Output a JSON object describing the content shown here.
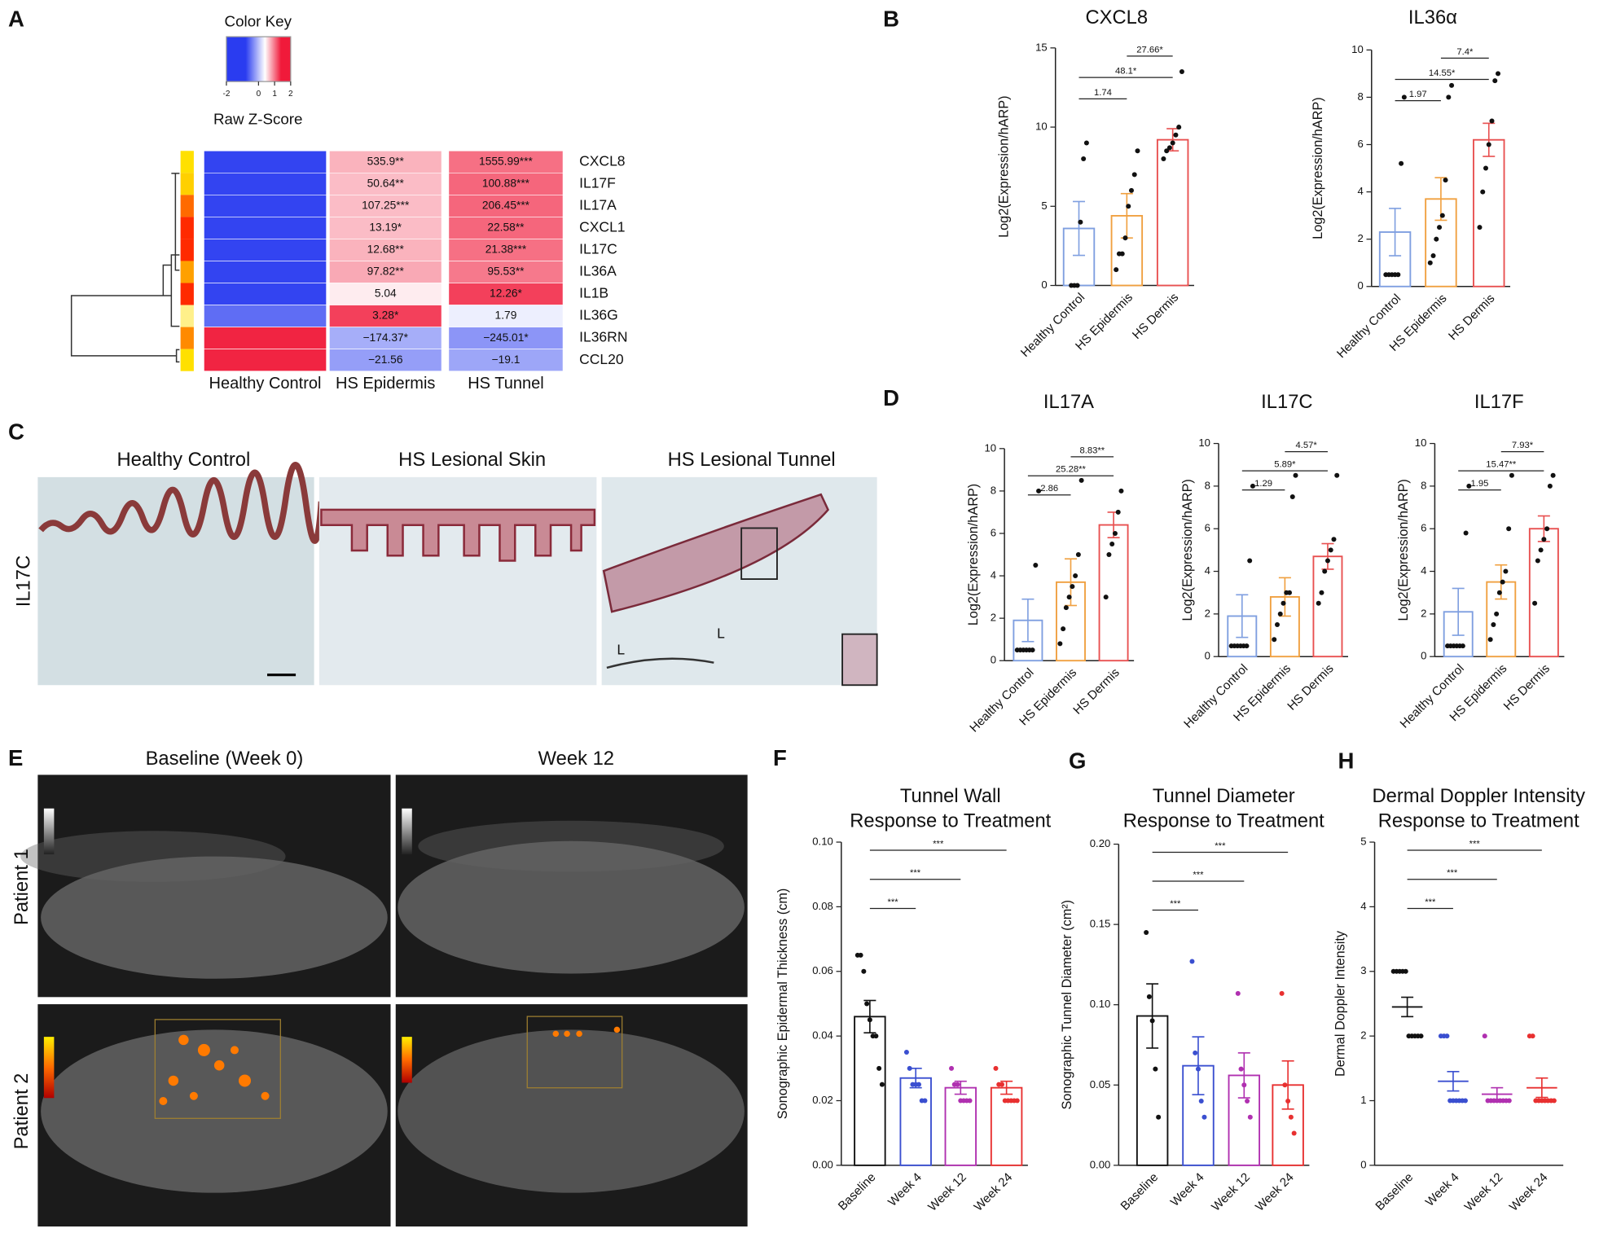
{
  "panels": {
    "labels": [
      "A",
      "B",
      "C",
      "D",
      "E",
      "F",
      "G",
      "H"
    ],
    "histology": {
      "titles": [
        "Healthy Control",
        "HS Lesional Skin",
        "HS Lesional Tunnel"
      ],
      "row_label": "IL17C",
      "lumen_labels": [
        "L",
        "L"
      ]
    },
    "ultrasound": {
      "titles": [
        "Baseline (Week 0)",
        "Week 12"
      ],
      "row_labels": [
        "Patient 1",
        "Patient 2"
      ]
    }
  },
  "chart_data": [
    {
      "type": "heatmap",
      "key_title": "Color Key",
      "key_label": "Raw Z-Score",
      "key_ticks": [
        -2,
        0,
        1,
        2
      ],
      "rows": [
        "CXCL8",
        "IL17F",
        "IL17A",
        "CXCL1",
        "IL17C",
        "IL36A",
        "IL1B",
        "IL36G",
        "IL36RN",
        "CCL20"
      ],
      "row_colors": [
        "#ffe000",
        "#ffd000",
        "#ff6a00",
        "#ff2a00",
        "#ff2a00",
        "#ffa000",
        "#ff2a00",
        "#fff08a",
        "#ff8a00",
        "#ffe000"
      ],
      "columns": [
        "Healthy Control",
        "HS Epidermis",
        "HS Tunnel"
      ],
      "values": [
        [
          -1.15,
          -1.15,
          -1.15,
          -1.15,
          -1.15,
          -1.15,
          -1.15,
          -0.9,
          1.15,
          1.15
        ],
        [
          0.4,
          0.35,
          0.35,
          0.35,
          0.4,
          0.45,
          0.1,
          1.0,
          -0.5,
          -0.6
        ],
        [
          0.75,
          0.8,
          0.8,
          0.8,
          0.75,
          0.7,
          1.0,
          -0.1,
          -0.65,
          -0.55
        ]
      ],
      "cell_labels": [
        [
          null,
          null,
          null,
          null,
          null,
          null,
          null,
          null,
          null,
          null
        ],
        [
          "535.9**",
          "50.64**",
          "107.25***",
          "13.19*",
          "12.68**",
          "97.82**",
          "5.04",
          "3.28*",
          "−174.37*",
          "−21.56"
        ],
        [
          "1555.99***",
          "100.88***",
          "206.45***",
          "22.58**",
          "21.38***",
          "95.53**",
          "12.26*",
          "1.79",
          "−245.01*",
          "−19.1"
        ]
      ]
    },
    {
      "type": "bar",
      "title": "CXCL8",
      "y_label": "Log2(Expression/hARP)",
      "categories": [
        "Healthy Control",
        "HS Epidermis",
        "HS Dermis"
      ],
      "colors": [
        "#7f9fe0",
        "#f0a040",
        "#e85050"
      ],
      "point_color": "#111",
      "values": [
        3.6,
        4.4,
        9.2
      ],
      "errors": [
        1.7,
        1.4,
        0.7
      ],
      "points": [
        [
          0,
          0,
          0,
          4,
          8,
          9
        ],
        [
          1,
          2,
          2,
          3,
          5,
          6,
          7,
          8.5
        ],
        [
          8,
          8.5,
          8.7,
          9,
          9.5,
          10,
          13.5
        ]
      ],
      "comparisons": [
        {
          "groups": [
            "Healthy Control",
            "HS Epidermis"
          ],
          "label": "1.74"
        },
        {
          "groups": [
            "Healthy Control",
            "HS Dermis"
          ],
          "label": "48.1*"
        },
        {
          "groups": [
            "HS Epidermis",
            "HS Dermis"
          ],
          "label": "27.66*"
        }
      ],
      "ylim": [
        0,
        15
      ],
      "yticks": [
        0,
        5,
        10,
        15
      ]
    },
    {
      "type": "bar",
      "title": "IL36α",
      "y_label": "Log2(Expression/hARP)",
      "categories": [
        "Healthy Control",
        "HS Epidermis",
        "HS Dermis"
      ],
      "colors": [
        "#7f9fe0",
        "#f0a040",
        "#e85050"
      ],
      "point_color": "#111",
      "values": [
        2.3,
        3.7,
        6.2
      ],
      "errors": [
        1.0,
        0.9,
        0.7
      ],
      "points": [
        [
          0.5,
          0.5,
          0.5,
          0.5,
          0.5,
          5.2,
          8
        ],
        [
          1,
          1.3,
          2,
          2.5,
          3,
          4.5,
          8,
          8.5
        ],
        [
          2.5,
          4,
          5,
          6,
          7,
          8.7,
          9
        ]
      ],
      "comparisons": [
        {
          "groups": [
            "Healthy Control",
            "HS Epidermis"
          ],
          "label": "1.97"
        },
        {
          "groups": [
            "Healthy Control",
            "HS Dermis"
          ],
          "label": "14.55*"
        },
        {
          "groups": [
            "HS Epidermis",
            "HS Dermis"
          ],
          "label": "7.4*"
        }
      ],
      "ylim": [
        0,
        10
      ],
      "yticks": [
        0,
        2,
        4,
        6,
        8,
        10
      ]
    },
    {
      "type": "bar",
      "title": "IL17A",
      "y_label": "Log2(Expression/hARP)",
      "categories": [
        "Healthy Control",
        "HS Epidermis",
        "HS Dermis"
      ],
      "colors": [
        "#7f9fe0",
        "#f0a040",
        "#e85050"
      ],
      "point_color": "#111",
      "values": [
        1.9,
        3.7,
        6.4
      ],
      "errors": [
        1.0,
        1.1,
        0.6
      ],
      "points": [
        [
          0.5,
          0.5,
          0.5,
          0.5,
          0.5,
          0.5,
          4.5,
          8
        ],
        [
          0.8,
          1.5,
          2.5,
          3,
          3.5,
          4,
          5,
          8.5
        ],
        [
          3,
          5,
          5.5,
          6,
          7,
          8
        ]
      ],
      "comparisons": [
        {
          "groups": [
            "Healthy Control",
            "HS Epidermis"
          ],
          "label": "2.86"
        },
        {
          "groups": [
            "Healthy Control",
            "HS Dermis"
          ],
          "label": "25.28**"
        },
        {
          "groups": [
            "HS Epidermis",
            "HS Dermis"
          ],
          "label": "8.83**"
        }
      ],
      "ylim": [
        0,
        10
      ],
      "yticks": [
        0,
        2,
        4,
        6,
        8,
        10
      ]
    },
    {
      "type": "bar",
      "title": "IL17C",
      "y_label": "Log2(Expression/hARP)",
      "categories": [
        "Healthy Control",
        "HS Epidermis",
        "HS Dermis"
      ],
      "colors": [
        "#7f9fe0",
        "#f0a040",
        "#e85050"
      ],
      "point_color": "#111",
      "values": [
        1.9,
        2.8,
        4.7
      ],
      "errors": [
        1.0,
        0.9,
        0.6
      ],
      "points": [
        [
          0.5,
          0.5,
          0.5,
          0.5,
          0.5,
          0.5,
          4.5,
          8
        ],
        [
          0.8,
          1.5,
          2,
          2.5,
          3,
          3,
          7.5,
          8.5
        ],
        [
          2.5,
          3,
          4,
          4.5,
          5,
          5.5,
          8.5
        ]
      ],
      "comparisons": [
        {
          "groups": [
            "Healthy Control",
            "HS Epidermis"
          ],
          "label": "1.29"
        },
        {
          "groups": [
            "Healthy Control",
            "HS Dermis"
          ],
          "label": "5.89*"
        },
        {
          "groups": [
            "HS Epidermis",
            "HS Dermis"
          ],
          "label": "4.57*"
        }
      ],
      "ylim": [
        0,
        10
      ],
      "yticks": [
        0,
        2,
        4,
        6,
        8,
        10
      ]
    },
    {
      "type": "bar",
      "title": "IL17F",
      "y_label": "Log2(Expression/hARP)",
      "categories": [
        "Healthy Control",
        "HS Epidermis",
        "HS Dermis"
      ],
      "colors": [
        "#7f9fe0",
        "#f0a040",
        "#e85050"
      ],
      "point_color": "#111",
      "values": [
        2.1,
        3.5,
        6.0
      ],
      "errors": [
        1.1,
        0.8,
        0.6
      ],
      "points": [
        [
          0.5,
          0.5,
          0.5,
          0.5,
          0.5,
          0.5,
          5.8,
          8
        ],
        [
          0.8,
          1.5,
          2,
          3,
          3.5,
          4,
          6,
          8.5
        ],
        [
          2.5,
          4.5,
          5,
          5.5,
          6,
          8,
          8.5
        ]
      ],
      "comparisons": [
        {
          "groups": [
            "Healthy Control",
            "HS Epidermis"
          ],
          "label": "1.95"
        },
        {
          "groups": [
            "Healthy Control",
            "HS Dermis"
          ],
          "label": "15.47**"
        },
        {
          "groups": [
            "HS Epidermis",
            "HS Dermis"
          ],
          "label": "7.93*"
        }
      ],
      "ylim": [
        0,
        10
      ],
      "yticks": [
        0,
        2,
        4,
        6,
        8,
        10
      ]
    },
    {
      "type": "bar",
      "title": "Tunnel Wall",
      "subtitle": "Response to Treatment",
      "y_label": "Sonographic Epidermal Thickness (cm)",
      "categories": [
        "Baseline",
        "Week 4",
        "Week 12",
        "Week 24"
      ],
      "colors": [
        "#111111",
        "#3a4fd0",
        "#b030b0",
        "#e83030"
      ],
      "values": [
        0.046,
        0.027,
        0.024,
        0.024
      ],
      "errors": [
        0.005,
        0.003,
        0.002,
        0.002
      ],
      "points": [
        [
          0.065,
          0.065,
          0.06,
          0.05,
          0.045,
          0.04,
          0.04,
          0.03,
          0.025
        ],
        [
          0.035,
          0.03,
          0.025,
          0.025,
          0.025,
          0.02,
          0.02
        ],
        [
          0.03,
          0.025,
          0.025,
          0.02,
          0.02,
          0.02,
          0.02
        ],
        [
          0.03,
          0.025,
          0.025,
          0.02,
          0.02,
          0.02,
          0.02,
          0.02
        ]
      ],
      "comparisons": [
        {
          "groups": [
            "Baseline",
            "Week 4"
          ],
          "label": "***"
        },
        {
          "groups": [
            "Baseline",
            "Week 12"
          ],
          "label": "***"
        },
        {
          "groups": [
            "Baseline",
            "Week 24"
          ],
          "label": "***"
        }
      ],
      "ylim": [
        0,
        0.1
      ],
      "yticks": [
        {
          "value": 0,
          "label": "0.00"
        },
        {
          "value": 0.02,
          "label": "0.02"
        },
        {
          "value": 0.04,
          "label": "0.04"
        },
        {
          "value": 0.06,
          "label": "0.06"
        },
        {
          "value": 0.08,
          "label": "0.08"
        },
        {
          "value": 0.1,
          "label": "0.10"
        }
      ]
    },
    {
      "type": "bar",
      "title": "Tunnel Diameter",
      "subtitle": "Response to Treatment",
      "y_label": "Sonographic Tunnel Diameter (cm²)",
      "categories": [
        "Baseline",
        "Week 4",
        "Week 12",
        "Week 24"
      ],
      "colors": [
        "#111111",
        "#3a4fd0",
        "#b030b0",
        "#e83030"
      ],
      "values": [
        0.093,
        0.062,
        0.056,
        0.05
      ],
      "errors": [
        0.02,
        0.018,
        0.014,
        0.015
      ],
      "points": [
        [
          0.145,
          0.105,
          0.09,
          0.06,
          0.03
        ],
        [
          0.127,
          0.07,
          0.06,
          0.04,
          0.03
        ],
        [
          0.107,
          0.06,
          0.05,
          0.04,
          0.03
        ],
        [
          0.107,
          0.05,
          0.04,
          0.03,
          0.02
        ]
      ],
      "comparisons": [
        {
          "groups": [
            "Baseline",
            "Week 4"
          ],
          "label": "***"
        },
        {
          "groups": [
            "Baseline",
            "Week 12"
          ],
          "label": "***"
        },
        {
          "groups": [
            "Baseline",
            "Week 24"
          ],
          "label": "***"
        }
      ],
      "ylim": [
        0,
        0.2
      ],
      "yticks": [
        {
          "value": 0,
          "label": "0.00"
        },
        {
          "value": 0.05,
          "label": "0.05"
        },
        {
          "value": 0.1,
          "label": "0.10"
        },
        {
          "value": 0.15,
          "label": "0.15"
        },
        {
          "value": 0.2,
          "label": "0.20"
        }
      ]
    },
    {
      "type": "dot",
      "title": "Dermal Doppler Intensity",
      "subtitle": "Response to Treatment",
      "y_label": "Dermal Doppler Intensity",
      "categories": [
        "Baseline",
        "Week 4",
        "Week 12",
        "Week 24"
      ],
      "colors": [
        "#111111",
        "#3a4fd0",
        "#b030b0",
        "#e83030"
      ],
      "values": [
        2.45,
        1.3,
        1.1,
        1.2
      ],
      "errors": [
        0.15,
        0.15,
        0.1,
        0.15
      ],
      "points": [
        [
          3,
          3,
          3,
          3,
          3,
          2,
          2,
          2,
          2,
          2
        ],
        [
          2,
          2,
          2,
          1,
          1,
          1,
          1,
          1,
          1
        ],
        [
          2,
          1,
          1,
          1,
          1,
          1,
          1,
          1,
          1
        ],
        [
          2,
          2,
          1,
          1,
          1,
          1,
          1,
          1,
          1
        ]
      ],
      "comparisons": [
        {
          "groups": [
            "Baseline",
            "Week 4"
          ],
          "label": "***"
        },
        {
          "groups": [
            "Baseline",
            "Week 12"
          ],
          "label": "***"
        },
        {
          "groups": [
            "Baseline",
            "Week 24"
          ],
          "label": "***"
        }
      ],
      "ylim": [
        0,
        5
      ],
      "yticks": [
        0,
        1,
        2,
        3,
        4,
        5
      ]
    }
  ]
}
